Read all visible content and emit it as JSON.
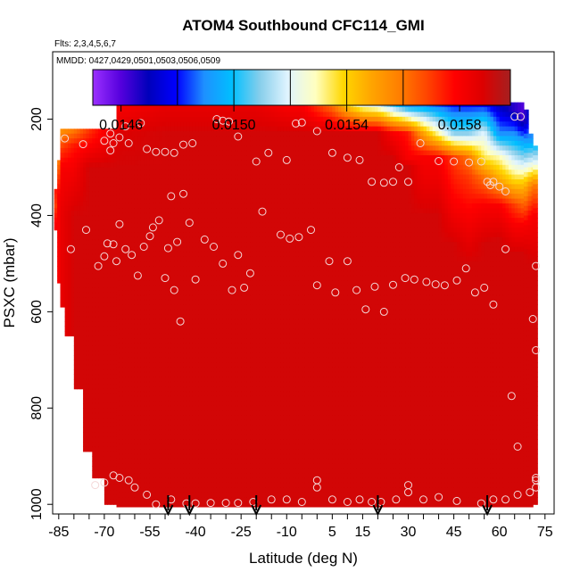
{
  "chart_data": {
    "type": "heatmap",
    "title": "ATOM4 Southbound CFC114_GMI",
    "flights_note": "Flts: 2,3,4,5,6,7",
    "dates_note": "MMDD: 0427,0429,0501,0503,0506,0509",
    "xlabel": "Latitude (deg N)",
    "ylabel": "PSXC (mbar)",
    "xlim": [
      -87,
      78
    ],
    "ylim": [
      1020,
      60
    ],
    "y_reversed": true,
    "grid": false,
    "legend": "colorbar-top",
    "x_ticks_minor": [
      -85,
      -80,
      -75,
      -70,
      -65,
      -60,
      -55,
      -50,
      -45,
      -40,
      -35,
      -30,
      -25,
      -20,
      -15,
      -10,
      -5,
      0,
      5,
      10,
      15,
      20,
      25,
      30,
      35,
      40,
      45,
      50,
      55,
      60,
      65,
      70,
      75
    ],
    "x_tick_labels": [
      "-85",
      "-70",
      "-55",
      "-40",
      "-25",
      "-10",
      "5",
      "15",
      "30",
      "45",
      "60",
      "75"
    ],
    "x_tick_label_positions": [
      -85,
      -70,
      -55,
      -40,
      -25,
      -10,
      5,
      15,
      30,
      45,
      60,
      75
    ],
    "y_ticks": [
      200,
      400,
      600,
      800,
      1000
    ],
    "y_tick_labels": [
      "200",
      "400",
      "600",
      "800",
      "1000"
    ],
    "colorbar": {
      "min": 0.0145,
      "max": 0.01598,
      "tick_values": [
        0.0146,
        0.015,
        0.0154,
        0.0158
      ],
      "tick_labels": [
        "0.0146",
        "0.0150",
        "0.0154",
        "0.0158"
      ],
      "divider_values": [
        0.0148,
        0.015,
        0.0152,
        0.0154,
        0.0156
      ],
      "colors": [
        "#9b30ff",
        "#5500dd",
        "#0000bb",
        "#0000ff",
        "#1e90ff",
        "#00bfff",
        "#87ceeb",
        "#e0f4ff",
        "#ffffc0",
        "#ffd700",
        "#ffa500",
        "#ff7f00",
        "#ff4500",
        "#ff0000",
        "#dd0000",
        "#a52020"
      ]
    },
    "columns": [
      {
        "x": -86,
        "values": [
          [
            350,
            0.01575
          ],
          [
            380,
            0.0157
          ],
          [
            420,
            0.0158
          ]
        ]
      },
      {
        "x": -85,
        "values": [
          [
            290,
            0.0156
          ],
          [
            320,
            0.0157
          ],
          [
            360,
            0.0158
          ],
          [
            430,
            0.0158
          ]
        ]
      },
      {
        "x": -84,
        "values": [
          [
            225,
            0.01555
          ],
          [
            260,
            0.0157
          ],
          [
            300,
            0.0158
          ],
          [
            400,
            0.01585
          ]
        ]
      },
      {
        "x": -80,
        "values": [
          [
            225,
            0.0156
          ],
          [
            255,
            0.01575
          ],
          [
            290,
            0.0158
          ],
          [
            400,
            0.0159
          ]
        ]
      },
      {
        "x": -75,
        "values": [
          [
            220,
            0.0157
          ],
          [
            260,
            0.0158
          ],
          [
            300,
            0.0159
          ]
        ]
      },
      {
        "x": -70,
        "values": [
          [
            230,
            0.0158
          ],
          [
            300,
            0.0159
          ]
        ]
      },
      {
        "x": -65,
        "values": [
          [
            170,
            0.0158
          ],
          [
            230,
            0.01588
          ],
          [
            300,
            0.0159
          ]
        ]
      },
      {
        "x": -50,
        "values": [
          [
            170,
            0.01585
          ],
          [
            230,
            0.0159
          ]
        ]
      },
      {
        "x": -35,
        "values": [
          [
            170,
            0.01585
          ],
          [
            230,
            0.0159
          ]
        ]
      },
      {
        "x": -20,
        "values": [
          [
            170,
            0.01585
          ],
          [
            230,
            0.0159
          ]
        ]
      },
      {
        "x": -10,
        "values": [
          [
            170,
            0.0158
          ],
          [
            230,
            0.0159
          ]
        ]
      },
      {
        "x": -5,
        "values": [
          [
            170,
            0.0158
          ],
          [
            230,
            0.0159
          ]
        ]
      },
      {
        "x": 0,
        "values": [
          [
            170,
            0.0157
          ],
          [
            230,
            0.0159
          ]
        ]
      },
      {
        "x": 5,
        "values": [
          [
            170,
            0.0156
          ],
          [
            230,
            0.0159
          ]
        ]
      },
      {
        "x": 10,
        "values": [
          [
            170,
            0.0154
          ],
          [
            230,
            0.0159
          ]
        ]
      },
      {
        "x": 15,
        "values": [
          [
            170,
            0.01525
          ],
          [
            230,
            0.0159
          ]
        ]
      },
      {
        "x": 20,
        "values": [
          [
            170,
            0.0152
          ],
          [
            230,
            0.0159
          ]
        ]
      },
      {
        "x": 25,
        "values": [
          [
            170,
            0.01505
          ],
          [
            230,
            0.0158
          ],
          [
            280,
            0.0159
          ]
        ]
      },
      {
        "x": 30,
        "values": [
          [
            170,
            0.0149
          ],
          [
            230,
            0.01575
          ],
          [
            280,
            0.0158
          ],
          [
            300,
            0.0159
          ]
        ]
      },
      {
        "x": 35,
        "values": [
          [
            170,
            0.0149
          ],
          [
            230,
            0.0155
          ],
          [
            280,
            0.0158
          ],
          [
            400,
            0.0159
          ]
        ]
      },
      {
        "x": 40,
        "values": [
          [
            170,
            0.01485
          ],
          [
            230,
            0.0153
          ],
          [
            280,
            0.0158
          ],
          [
            400,
            0.0159
          ]
        ]
      },
      {
        "x": 45,
        "values": [
          [
            170,
            0.0148
          ],
          [
            230,
            0.0151
          ],
          [
            280,
            0.0157
          ],
          [
            380,
            0.0158
          ],
          [
            460,
            0.0159
          ]
        ]
      },
      {
        "x": 50,
        "values": [
          [
            170,
            0.0148
          ],
          [
            230,
            0.0151
          ],
          [
            280,
            0.0156
          ],
          [
            320,
            0.0157
          ],
          [
            400,
            0.0158
          ],
          [
            500,
            0.0159
          ]
        ]
      },
      {
        "x": 55,
        "values": [
          [
            170,
            0.0148
          ],
          [
            230,
            0.0152
          ],
          [
            280,
            0.01535
          ],
          [
            320,
            0.0156
          ],
          [
            380,
            0.0158
          ],
          [
            460,
            0.0159
          ]
        ]
      },
      {
        "x": 60,
        "values": [
          [
            170,
            0.0147
          ],
          [
            230,
            0.0149
          ],
          [
            280,
            0.0153
          ],
          [
            330,
            0.0155
          ],
          [
            380,
            0.0158
          ],
          [
            450,
            0.0159
          ]
        ]
      },
      {
        "x": 65,
        "values": [
          [
            180,
            0.01465
          ],
          [
            230,
            0.0149
          ],
          [
            280,
            0.01515
          ],
          [
            330,
            0.0154
          ],
          [
            380,
            0.0157
          ],
          [
            420,
            0.0158
          ],
          [
            480,
            0.0159
          ]
        ]
      },
      {
        "x": 68,
        "values": [
          [
            200,
            0.0146
          ],
          [
            240,
            0.0149
          ],
          [
            280,
            0.0151
          ],
          [
            330,
            0.0154
          ],
          [
            370,
            0.0156
          ],
          [
            420,
            0.0158
          ],
          [
            480,
            0.0159
          ]
        ]
      },
      {
        "x": 71,
        "values": [
          [
            240,
            0.0149
          ],
          [
            290,
            0.0152
          ],
          [
            340,
            0.0156
          ],
          [
            400,
            0.0158
          ],
          [
            500,
            0.0159
          ]
        ]
      }
    ],
    "coverage": [
      {
        "x0": -86.5,
        "x1": -85.5,
        "p0": 345,
        "p1": 430
      },
      {
        "x0": -85.5,
        "x1": -84.5,
        "p0": 285,
        "p1": 540
      },
      {
        "x0": -84.5,
        "x1": -83,
        "p0": 220,
        "p1": 590
      },
      {
        "x0": -83,
        "x1": -80,
        "p0": 220,
        "p1": 650
      },
      {
        "x0": -80,
        "x1": -77,
        "p0": 220,
        "p1": 760
      },
      {
        "x0": -77,
        "x1": -74,
        "p0": 220,
        "p1": 890
      },
      {
        "x0": -74,
        "x1": -70,
        "p0": 220,
        "p1": 945
      },
      {
        "x0": -70,
        "x1": -66,
        "p0": 220,
        "p1": 1000
      },
      {
        "x0": -66,
        "x1": -2,
        "p0": 165,
        "p1": 1005
      },
      {
        "x0": -2,
        "x1": 66,
        "p0": 165,
        "p1": 1005
      },
      {
        "x0": 66,
        "x1": 68,
        "p0": 165,
        "p1": 1005
      },
      {
        "x0": 68,
        "x1": 69.5,
        "p0": 180,
        "p1": 1005
      },
      {
        "x0": 69.5,
        "x1": 71,
        "p0": 230,
        "p1": 1005
      },
      {
        "x0": 71,
        "x1": 72.5,
        "p0": 255,
        "p1": 1000
      }
    ],
    "observations": [
      [
        -83,
        240
      ],
      [
        -77,
        252
      ],
      [
        -70,
        245
      ],
      [
        -68,
        230
      ],
      [
        -68,
        265
      ],
      [
        -67,
        250
      ],
      [
        -65,
        238
      ],
      [
        -63,
        215
      ],
      [
        -62,
        250
      ],
      [
        -58,
        208
      ],
      [
        -56,
        262
      ],
      [
        -53,
        268
      ],
      [
        -50,
        268
      ],
      [
        -47,
        270
      ],
      [
        -44,
        253
      ],
      [
        -41,
        250
      ],
      [
        -33,
        200
      ],
      [
        -31,
        203
      ],
      [
        -29,
        205
      ],
      [
        -26,
        236
      ],
      [
        -20,
        288
      ],
      [
        -16,
        270
      ],
      [
        -10,
        285
      ],
      [
        -7,
        209
      ],
      [
        -5,
        207
      ],
      [
        0,
        225
      ],
      [
        5,
        270
      ],
      [
        10,
        280
      ],
      [
        14,
        285
      ],
      [
        18,
        330
      ],
      [
        22,
        332
      ],
      [
        25,
        330
      ],
      [
        27,
        300
      ],
      [
        30,
        330
      ],
      [
        34,
        250
      ],
      [
        40,
        287
      ],
      [
        45,
        288
      ],
      [
        50,
        290
      ],
      [
        54,
        288
      ],
      [
        56,
        330
      ],
      [
        57,
        337
      ],
      [
        58,
        330
      ],
      [
        60,
        340
      ],
      [
        62,
        350
      ],
      [
        65,
        195
      ],
      [
        67,
        195
      ],
      [
        -81,
        470
      ],
      [
        -76,
        430
      ],
      [
        -72,
        505
      ],
      [
        -70,
        485
      ],
      [
        -69,
        458
      ],
      [
        -67,
        460
      ],
      [
        -66,
        495
      ],
      [
        -65,
        418
      ],
      [
        -63,
        470
      ],
      [
        -61,
        482
      ],
      [
        -59,
        525
      ],
      [
        -57,
        465
      ],
      [
        -55,
        443
      ],
      [
        -54,
        425
      ],
      [
        -52,
        410
      ],
      [
        -50,
        530
      ],
      [
        -49,
        468
      ],
      [
        -48,
        360
      ],
      [
        -47,
        555
      ],
      [
        -46,
        455
      ],
      [
        -45,
        620
      ],
      [
        -44,
        355
      ],
      [
        -42,
        415
      ],
      [
        -40,
        533
      ],
      [
        -37,
        450
      ],
      [
        -34,
        465
      ],
      [
        -31,
        500
      ],
      [
        -28,
        555
      ],
      [
        -26,
        482
      ],
      [
        -24,
        550
      ],
      [
        -22,
        520
      ],
      [
        -18,
        392
      ],
      [
        -12,
        440
      ],
      [
        -9,
        448
      ],
      [
        -6,
        445
      ],
      [
        -2,
        430
      ],
      [
        0,
        545
      ],
      [
        4,
        495
      ],
      [
        6,
        560
      ],
      [
        10,
        495
      ],
      [
        13,
        555
      ],
      [
        16,
        595
      ],
      [
        19,
        548
      ],
      [
        22,
        600
      ],
      [
        25,
        544
      ],
      [
        29,
        530
      ],
      [
        32,
        533
      ],
      [
        36,
        538
      ],
      [
        39,
        543
      ],
      [
        42,
        545
      ],
      [
        46,
        535
      ],
      [
        49,
        510
      ],
      [
        52,
        560
      ],
      [
        55,
        550
      ],
      [
        58,
        585
      ],
      [
        62,
        470
      ],
      [
        64,
        775
      ],
      [
        66,
        880
      ],
      [
        71,
        615
      ],
      [
        72,
        680
      ],
      [
        72,
        505
      ],
      [
        -73,
        960
      ],
      [
        -70,
        955
      ],
      [
        -67,
        940
      ],
      [
        -65,
        945
      ],
      [
        -62,
        950
      ],
      [
        -60,
        965
      ],
      [
        -56,
        980
      ],
      [
        -53,
        1000
      ],
      [
        -48,
        990
      ],
      [
        -43,
        998
      ],
      [
        -40,
        998
      ],
      [
        -35,
        997
      ],
      [
        -30,
        997
      ],
      [
        -26,
        997
      ],
      [
        -21,
        995
      ],
      [
        -15,
        990
      ],
      [
        -10,
        990
      ],
      [
        -5,
        995
      ],
      [
        0,
        950
      ],
      [
        0,
        965
      ],
      [
        5,
        990
      ],
      [
        10,
        995
      ],
      [
        14,
        990
      ],
      [
        18,
        995
      ],
      [
        21,
        995
      ],
      [
        26,
        990
      ],
      [
        30,
        960
      ],
      [
        30,
        975
      ],
      [
        35,
        990
      ],
      [
        40,
        985
      ],
      [
        46,
        993
      ],
      [
        54,
        998
      ],
      [
        58,
        990
      ],
      [
        62,
        990
      ],
      [
        66,
        980
      ],
      [
        70,
        975
      ],
      [
        72,
        950
      ],
      [
        72,
        945
      ],
      [
        72,
        965
      ]
    ],
    "flight_markers": [
      -49,
      -42,
      -20,
      20,
      56
    ]
  }
}
